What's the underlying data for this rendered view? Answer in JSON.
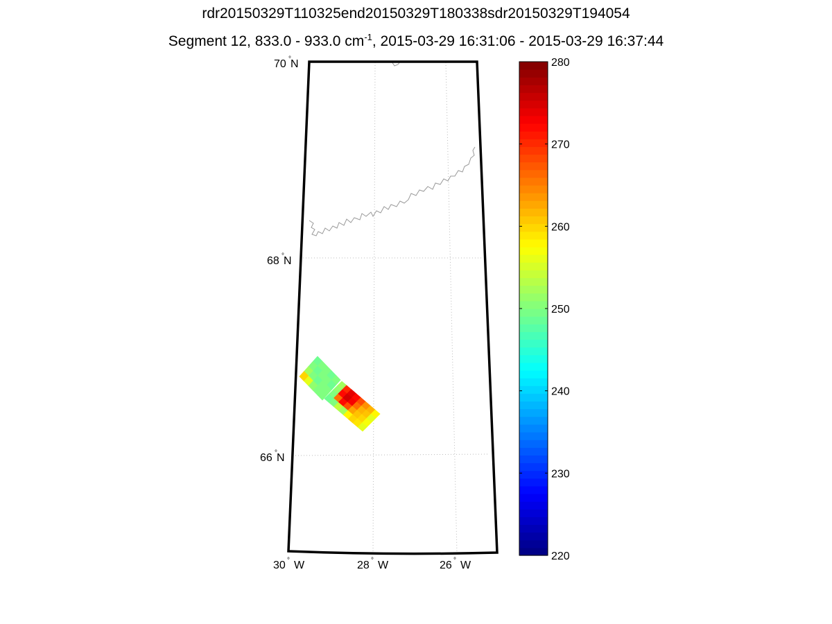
{
  "title_line1": "rdr20150329T110325end20150329T180338sdr20150329T194054",
  "title_line2_pre": "Segment 12, 833.0 - 933.0 cm",
  "title_line2_sup": "-1",
  "title_line2_post": ", 2015-03-29 16:31:06 - 2015-03-29 16:37:44",
  "chart_data": {
    "type": "heatmap",
    "projection": "map",
    "lat_ticks": [
      {
        "value": 70,
        "label": "70",
        "hemi": "N"
      },
      {
        "value": 68,
        "label": "68",
        "hemi": "N"
      },
      {
        "value": 66,
        "label": "66",
        "hemi": "N"
      }
    ],
    "lon_ticks": [
      {
        "value": -30,
        "label": "30",
        "hemi": "W"
      },
      {
        "value": -28,
        "label": "28",
        "hemi": "W"
      },
      {
        "value": -26,
        "label": "26",
        "hemi": "W"
      }
    ],
    "colorbar": {
      "colormap": "jet",
      "range": [
        220,
        280
      ],
      "ticks": [
        220,
        230,
        240,
        250,
        260,
        270,
        280
      ]
    },
    "patches": [
      {
        "name": "granule-1",
        "values": [
          [
            249,
            250,
            250,
            249,
            250
          ],
          [
            250,
            249,
            250,
            250,
            249
          ],
          [
            252,
            250,
            249,
            250,
            250
          ],
          [
            260,
            256,
            251,
            250,
            250
          ]
        ]
      },
      {
        "name": "granule-2",
        "values": [
          [
            252,
            270,
            274,
            272,
            268,
            264,
            262,
            258
          ],
          [
            251,
            272,
            275,
            273,
            266,
            262,
            261,
            256
          ],
          [
            250,
            266,
            272,
            268,
            263,
            261,
            260,
            257
          ],
          [
            249,
            250,
            254,
            252,
            258,
            260,
            259,
            256
          ]
        ]
      }
    ]
  }
}
